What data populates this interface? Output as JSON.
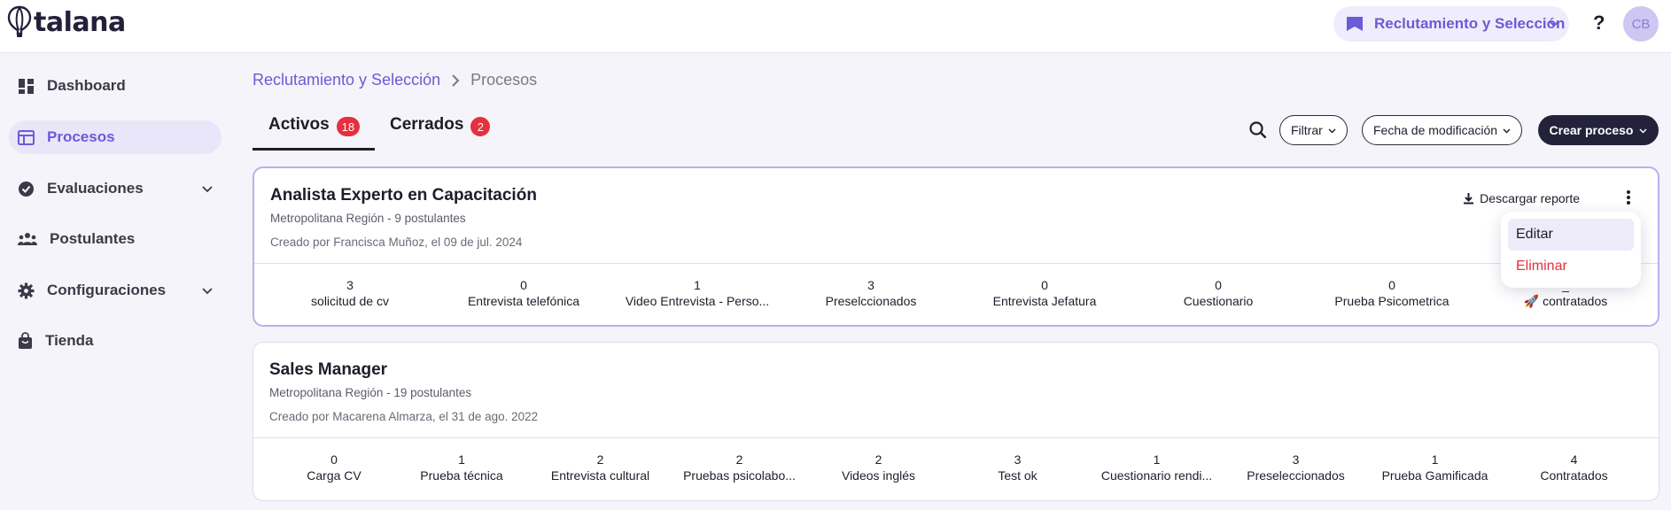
{
  "app": {
    "logo_text": "talana",
    "module": "Reclutamiento y Selección",
    "help": "?",
    "avatar_initials": "CB"
  },
  "sidebar": {
    "items": [
      {
        "label": "Dashboard",
        "icon": "dashboard-icon"
      },
      {
        "label": "Procesos",
        "icon": "table-icon",
        "active": true
      },
      {
        "label": "Evaluaciones",
        "icon": "check-circle-icon",
        "expandable": true
      },
      {
        "label": "Postulantes",
        "icon": "people-icon"
      },
      {
        "label": "Configuraciones",
        "icon": "gear-icon",
        "expandable": true
      },
      {
        "label": "Tienda",
        "icon": "shopping-bag-icon"
      }
    ]
  },
  "breadcrumb": {
    "parent": "Reclutamiento y Selección",
    "current": "Procesos"
  },
  "tabs": [
    {
      "label": "Activos",
      "count": "18",
      "active": true
    },
    {
      "label": "Cerrados",
      "count": "2",
      "active": false
    }
  ],
  "toolbar": {
    "filter_label": "Filtrar",
    "sort_label": "Fecha de modificación",
    "create_label": "Crear proceso"
  },
  "processes": [
    {
      "title": "Analista Experto en Capacitación",
      "subtitle": "Metropolitana Región - 9 postulantes",
      "created": "Creado por Francisca Muñoz, el 09 de jul. 2024",
      "download_label": "Descargar reporte",
      "stages": [
        {
          "count": "3",
          "label": "solicitud de cv"
        },
        {
          "count": "0",
          "label": "Entrevista telefónica"
        },
        {
          "count": "1",
          "label": "Video Entrevista - Perso..."
        },
        {
          "count": "3",
          "label": "Preselccionados"
        },
        {
          "count": "0",
          "label": "Entrevista Jefatura"
        },
        {
          "count": "0",
          "label": "Cuestionario"
        },
        {
          "count": "0",
          "label": "Prueba Psicometrica"
        },
        {
          "count": "_",
          "label": "🚀 contratados"
        }
      ]
    },
    {
      "title": "Sales Manager",
      "subtitle": "Metropolitana Región - 19 postulantes",
      "created": "Creado por Macarena Almarza, el 31 de ago. 2022",
      "stages": [
        {
          "count": "0",
          "label": "Carga CV"
        },
        {
          "count": "1",
          "label": "Prueba técnica"
        },
        {
          "count": "2",
          "label": "Entrevista cultural"
        },
        {
          "count": "2",
          "label": "Pruebas psicolabo..."
        },
        {
          "count": "2",
          "label": "Videos inglés"
        },
        {
          "count": "3",
          "label": "Test ok"
        },
        {
          "count": "1",
          "label": "Cuestionario rendi..."
        },
        {
          "count": "3",
          "label": "Preseleccionados"
        },
        {
          "count": "1",
          "label": "Prueba Gamificada"
        },
        {
          "count": "4",
          "label": "Contratados"
        }
      ]
    }
  ],
  "context_menu": {
    "edit_label": "Editar",
    "delete_label": "Eliminar"
  },
  "colors": {
    "accent": "#6b5bd6",
    "danger": "#e5303e",
    "primary_button": "#23223a",
    "background": "#f5f4fa"
  }
}
